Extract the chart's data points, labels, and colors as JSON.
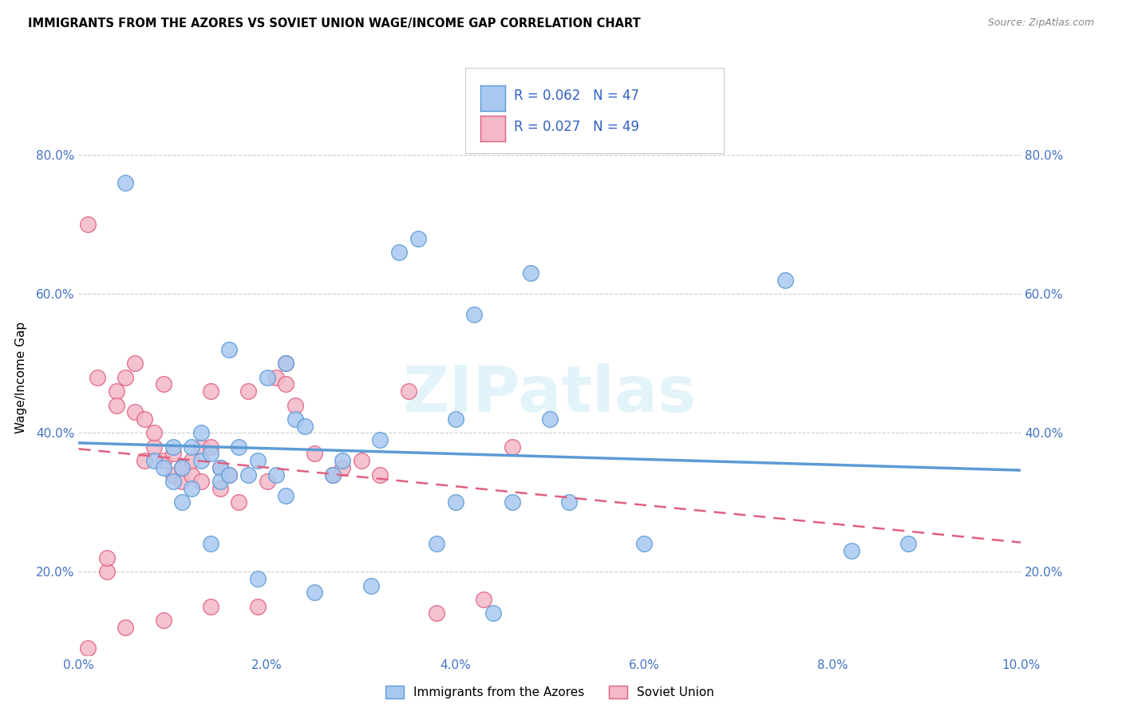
{
  "title": "IMMIGRANTS FROM THE AZORES VS SOVIET UNION WAGE/INCOME GAP CORRELATION CHART",
  "source": "Source: ZipAtlas.com",
  "ylabel": "Wage/Income Gap",
  "xmin": 0.0,
  "xmax": 0.1,
  "ymin": 0.08,
  "ymax": 0.88,
  "xticks": [
    0.0,
    0.02,
    0.04,
    0.06,
    0.08,
    0.1
  ],
  "xtick_labels": [
    "0.0%",
    "2.0%",
    "4.0%",
    "6.0%",
    "8.0%",
    "10.0%"
  ],
  "yticks": [
    0.2,
    0.4,
    0.6,
    0.8
  ],
  "ytick_labels": [
    "20.0%",
    "40.0%",
    "60.0%",
    "80.0%"
  ],
  "azores_color": "#a8c8f0",
  "azores_edge_color": "#5b9bd5",
  "soviet_color": "#f4b8c8",
  "soviet_edge_color": "#e06080",
  "azores_R": "0.062",
  "azores_N": "47",
  "soviet_R": "0.027",
  "soviet_N": "49",
  "legend_label_azores": "Immigrants from the Azores",
  "legend_label_soviet": "Soviet Union",
  "watermark": "ZIPatlas",
  "azores_x": [
    0.005,
    0.008,
    0.009,
    0.01,
    0.011,
    0.011,
    0.012,
    0.012,
    0.013,
    0.014,
    0.014,
    0.015,
    0.015,
    0.016,
    0.017,
    0.018,
    0.019,
    0.02,
    0.021,
    0.022,
    0.022,
    0.023,
    0.024,
    0.025,
    0.027,
    0.028,
    0.031,
    0.032,
    0.034,
    0.036,
    0.038,
    0.04,
    0.04,
    0.042,
    0.044,
    0.046,
    0.048,
    0.05,
    0.052,
    0.06,
    0.075,
    0.082,
    0.088,
    0.01,
    0.013,
    0.016,
    0.019
  ],
  "azores_y": [
    0.76,
    0.36,
    0.35,
    0.33,
    0.3,
    0.35,
    0.38,
    0.32,
    0.36,
    0.24,
    0.37,
    0.35,
    0.33,
    0.52,
    0.38,
    0.34,
    0.19,
    0.48,
    0.34,
    0.5,
    0.31,
    0.42,
    0.41,
    0.17,
    0.34,
    0.36,
    0.18,
    0.39,
    0.66,
    0.68,
    0.24,
    0.42,
    0.3,
    0.57,
    0.14,
    0.3,
    0.63,
    0.42,
    0.3,
    0.24,
    0.62,
    0.23,
    0.24,
    0.38,
    0.4,
    0.34,
    0.36
  ],
  "soviet_x": [
    0.001,
    0.001,
    0.002,
    0.003,
    0.003,
    0.004,
    0.004,
    0.005,
    0.005,
    0.006,
    0.006,
    0.007,
    0.007,
    0.008,
    0.008,
    0.009,
    0.009,
    0.01,
    0.01,
    0.011,
    0.011,
    0.012,
    0.012,
    0.013,
    0.013,
    0.014,
    0.014,
    0.015,
    0.015,
    0.016,
    0.017,
    0.018,
    0.019,
    0.02,
    0.021,
    0.022,
    0.023,
    0.025,
    0.027,
    0.028,
    0.03,
    0.032,
    0.035,
    0.038,
    0.043,
    0.046,
    0.022,
    0.014,
    0.009
  ],
  "soviet_y": [
    0.09,
    0.7,
    0.48,
    0.2,
    0.22,
    0.46,
    0.44,
    0.48,
    0.12,
    0.5,
    0.43,
    0.36,
    0.42,
    0.38,
    0.4,
    0.47,
    0.36,
    0.37,
    0.34,
    0.33,
    0.35,
    0.34,
    0.36,
    0.38,
    0.33,
    0.38,
    0.46,
    0.35,
    0.32,
    0.34,
    0.3,
    0.46,
    0.15,
    0.33,
    0.48,
    0.5,
    0.44,
    0.37,
    0.34,
    0.35,
    0.36,
    0.34,
    0.46,
    0.14,
    0.16,
    0.38,
    0.47,
    0.15,
    0.13
  ]
}
